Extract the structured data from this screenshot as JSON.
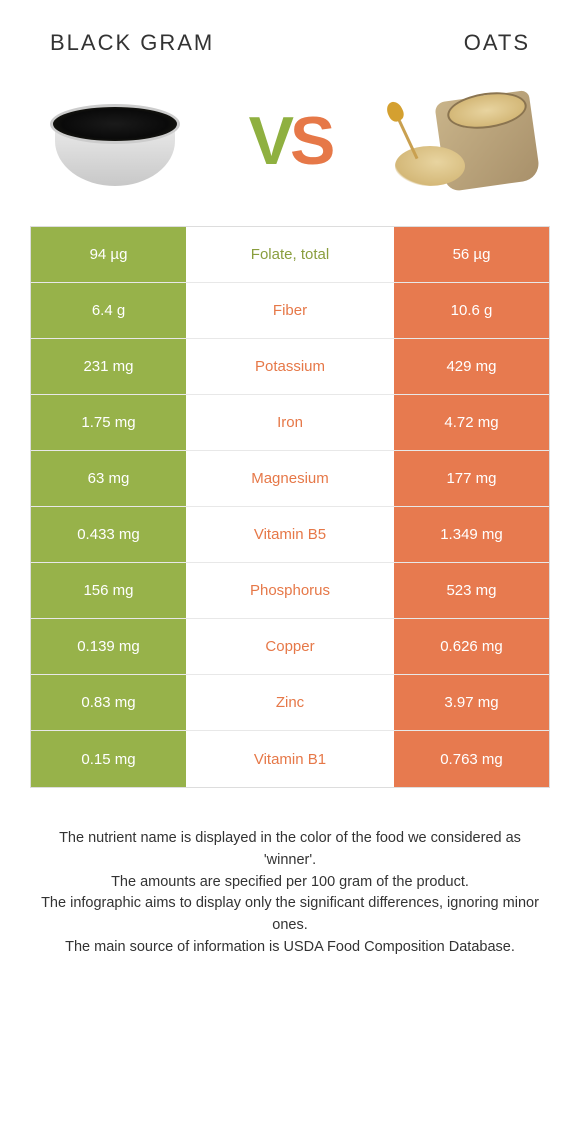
{
  "colors": {
    "left": "#97b24a",
    "right": "#e77a4f",
    "left_text": "#8a9e3e",
    "right_text": "#e67848"
  },
  "header": {
    "left_title": "Black gram",
    "right_title": "Oats"
  },
  "vs": {
    "v": "V",
    "s": "S"
  },
  "rows": [
    {
      "left": "94 µg",
      "label": "Folate, total",
      "right": "56 µg",
      "winner": "left"
    },
    {
      "left": "6.4 g",
      "label": "Fiber",
      "right": "10.6 g",
      "winner": "right"
    },
    {
      "left": "231 mg",
      "label": "Potassium",
      "right": "429 mg",
      "winner": "right"
    },
    {
      "left": "1.75 mg",
      "label": "Iron",
      "right": "4.72 mg",
      "winner": "right"
    },
    {
      "left": "63 mg",
      "label": "Magnesium",
      "right": "177 mg",
      "winner": "right"
    },
    {
      "left": "0.433 mg",
      "label": "Vitamin B5",
      "right": "1.349 mg",
      "winner": "right"
    },
    {
      "left": "156 mg",
      "label": "Phosphorus",
      "right": "523 mg",
      "winner": "right"
    },
    {
      "left": "0.139 mg",
      "label": "Copper",
      "right": "0.626 mg",
      "winner": "right"
    },
    {
      "left": "0.83 mg",
      "label": "Zinc",
      "right": "3.97 mg",
      "winner": "right"
    },
    {
      "left": "0.15 mg",
      "label": "Vitamin B1",
      "right": "0.763 mg",
      "winner": "right"
    }
  ],
  "footer": {
    "line1": "The nutrient name is displayed in the color of the food we considered as 'winner'.",
    "line2": "The amounts are specified per 100 gram of the product.",
    "line3": "The infographic aims to display only the significant differences, ignoring minor ones.",
    "line4": "The main source of information is USDA Food Composition Database."
  }
}
